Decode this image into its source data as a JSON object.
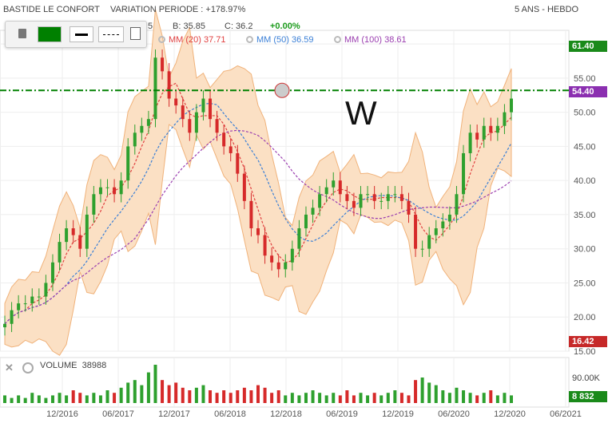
{
  "header": {
    "symbol": "BASTIDE LE CONFORT",
    "variation": "VARIATION PERIODE : +178.97%",
    "period": "5 ANS - HEBDO",
    "ohlc_o": "5",
    "ohlc_b": "B: 35.85",
    "ohlc_c": "C: 36.2",
    "change": "+0.00%"
  },
  "indicators": [
    {
      "label": "MM (20) 37.71",
      "color": "#e04040"
    },
    {
      "label": "MM (50) 36.59",
      "color": "#3a7fd6"
    },
    {
      "label": "MM (100) 38.61",
      "color": "#9b3fb0"
    }
  ],
  "price_tags": {
    "high": "61.40",
    "last": "54.40",
    "low": "16.42",
    "volume": "8 832"
  },
  "volume": {
    "label": "VOLUME",
    "value": "38988",
    "axis_label": "90.00K"
  },
  "annotation": "W",
  "colors": {
    "up": "#2ea02e",
    "down": "#d62a2a",
    "band": "#fbe0c4",
    "line": "#008000"
  },
  "chart_data": {
    "type": "candlestick",
    "y_ticks": [
      "15.00",
      "20.00",
      "25.00",
      "30.00",
      "35.00",
      "40.00",
      "45.00",
      "50.00",
      "55.00",
      "60.00"
    ],
    "x_ticks": [
      "12/2016",
      "06/2017",
      "12/2017",
      "06/2018",
      "12/2018",
      "06/2019",
      "12/2019",
      "06/2020",
      "12/2020",
      "06/2021"
    ],
    "ylim": [
      15,
      62
    ],
    "horizontal_line": 53.2,
    "close_series": [
      19,
      21,
      22,
      22,
      23,
      23,
      25,
      28,
      31,
      33,
      32,
      30,
      35,
      38,
      39,
      39,
      38,
      40,
      45,
      47,
      48,
      49,
      58,
      56,
      52,
      51,
      49,
      47,
      50,
      52,
      49,
      47,
      45,
      44,
      41,
      37,
      33,
      32,
      29,
      28,
      27,
      28,
      30,
      33,
      35,
      36,
      38,
      39,
      40,
      38,
      37,
      36,
      38,
      38,
      37,
      37,
      38,
      38,
      37,
      35,
      30,
      30,
      32,
      33,
      34,
      35,
      38,
      44,
      47,
      46,
      48,
      47,
      48,
      50,
      52
    ],
    "volume_series": [
      3,
      2,
      3,
      2,
      4,
      3,
      2,
      3,
      4,
      3,
      5,
      4,
      3,
      4,
      3,
      5,
      4,
      6,
      8,
      9,
      7,
      12,
      15,
      9,
      7,
      8,
      6,
      5,
      6,
      7,
      5,
      4,
      5,
      4,
      5,
      6,
      5,
      7,
      6,
      4,
      5,
      3,
      4,
      3,
      4,
      5,
      4,
      3,
      4,
      3,
      5,
      3,
      4,
      3,
      4,
      3,
      4,
      5,
      4,
      3,
      9,
      10,
      8,
      7,
      5,
      4,
      6,
      5,
      4,
      3,
      4,
      5,
      3,
      4,
      3
    ]
  }
}
